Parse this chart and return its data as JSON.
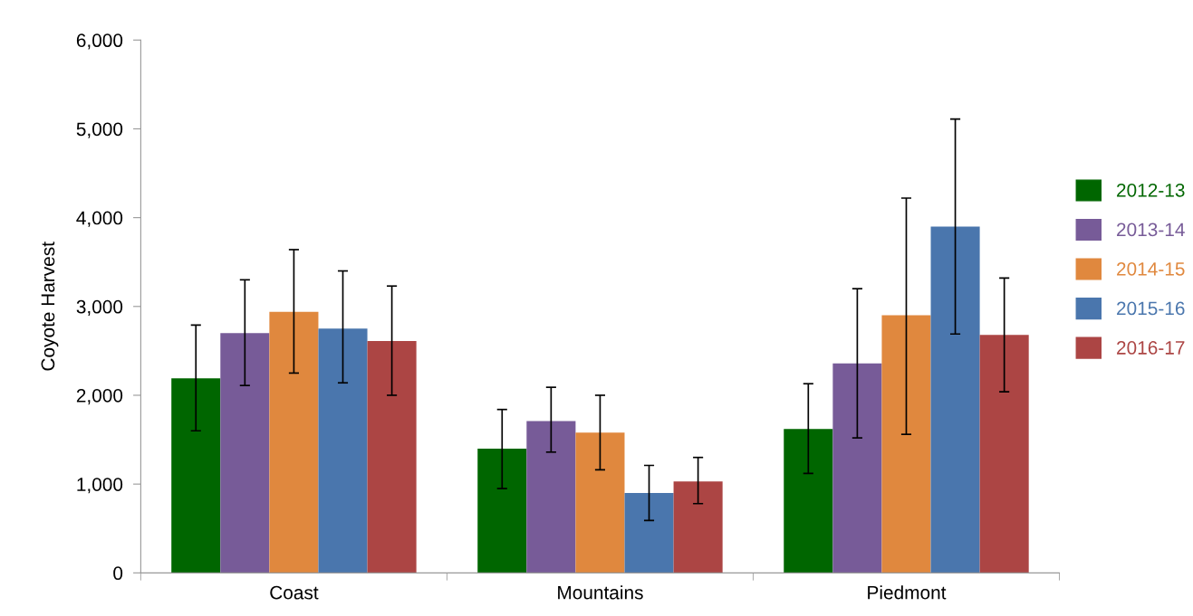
{
  "chart_data": {
    "type": "bar",
    "ylabel": "Coyote Harvest",
    "categories": [
      "Coast",
      "Mountains",
      "Piedmont"
    ],
    "series": [
      {
        "name": "2012-13",
        "color": "#006600",
        "values": [
          2190,
          1400,
          1620
        ],
        "errors": [
          [
            1600,
            2790
          ],
          [
            950,
            1840
          ],
          [
            1120,
            2130
          ]
        ]
      },
      {
        "name": "2013-14",
        "color": "#775b98",
        "values": [
          2700,
          1710,
          2360
        ],
        "errors": [
          [
            2110,
            3300
          ],
          [
            1360,
            2090
          ],
          [
            1520,
            3200
          ]
        ]
      },
      {
        "name": "2014-15",
        "color": "#e0883e",
        "values": [
          2940,
          1580,
          2900
        ],
        "errors": [
          [
            2250,
            3640
          ],
          [
            1160,
            2000
          ],
          [
            1560,
            4220
          ]
        ]
      },
      {
        "name": "2015-16",
        "color": "#4a76ad",
        "values": [
          2750,
          900,
          3900
        ],
        "errors": [
          [
            2140,
            3400
          ],
          [
            590,
            1210
          ],
          [
            2690,
            5110
          ]
        ]
      },
      {
        "name": "2016-17",
        "color": "#ac4544",
        "values": [
          2610,
          1030,
          2680
        ],
        "errors": [
          [
            2000,
            3230
          ],
          [
            780,
            1300
          ],
          [
            2040,
            3320
          ]
        ]
      }
    ],
    "ylim": [
      0,
      6000
    ],
    "yticks": [
      {
        "value": 0,
        "label": "0"
      },
      {
        "value": 1000,
        "label": "1,000"
      },
      {
        "value": 2000,
        "label": "2,000"
      },
      {
        "value": 3000,
        "label": "3,000"
      },
      {
        "value": 4000,
        "label": "4,000"
      },
      {
        "value": 5000,
        "label": "5,000"
      },
      {
        "value": 6000,
        "label": "6,000"
      }
    ],
    "grid": false,
    "legend": "right"
  }
}
